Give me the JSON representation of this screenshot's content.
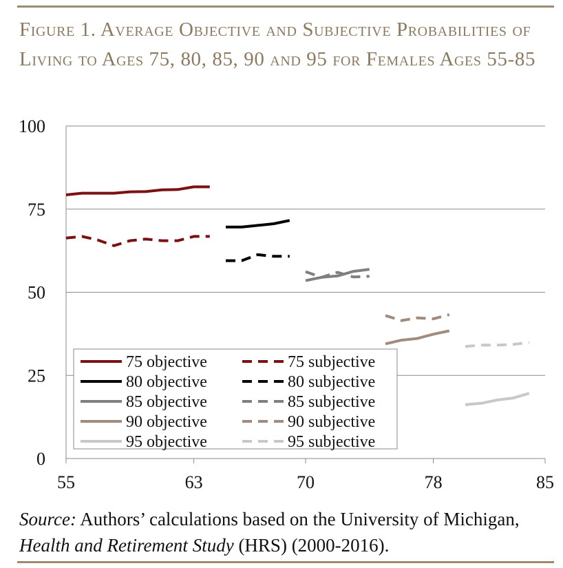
{
  "figure": {
    "title": "Figure 1. Average Objective and Subjective Probabilities of Living to Ages 75, 80, 85, 90 and 95 for Females Ages 55-85"
  },
  "source": {
    "label": "Source:",
    "text_before": " Authors’ calculations based on the University of Michigan, ",
    "study": "Health and Retirement Study",
    "text_after": " (HRS) (2000-2016)."
  },
  "colors": {
    "target_75": "#7b1113",
    "target_80": "#000000",
    "target_85": "#7f7f7f",
    "target_90": "#a08c7e",
    "target_95": "#c8c8c8",
    "rule": "#9b8a6e",
    "title": "#8c7a5f"
  },
  "chart_data": {
    "type": "line",
    "x_ticks": [
      "55",
      "63",
      "70",
      "78",
      "85"
    ],
    "y_ticks": [
      "0",
      "25",
      "50",
      "75",
      "100"
    ],
    "xlim": [
      55,
      85
    ],
    "ylim": [
      0,
      100
    ],
    "grid": "horizontal",
    "legend_position": "bottom-left",
    "series": [
      {
        "name": "75 objective",
        "style": "solid",
        "color": "#7b1113",
        "x": [
          55,
          56,
          57,
          58,
          59,
          60,
          61,
          62,
          63,
          64
        ],
        "y": [
          79.3,
          79.8,
          79.8,
          79.8,
          80.2,
          80.3,
          80.8,
          80.9,
          81.7,
          81.7
        ]
      },
      {
        "name": "75 subjective",
        "style": "dashed",
        "color": "#7b1113",
        "x": [
          55,
          56,
          57,
          58,
          59,
          60,
          61,
          62,
          63,
          64
        ],
        "y": [
          66.3,
          66.8,
          65.7,
          64.0,
          65.5,
          66.0,
          65.5,
          65.5,
          66.8,
          66.8
        ]
      },
      {
        "name": "80 objective",
        "style": "solid",
        "color": "#000000",
        "x": [
          65,
          66,
          67,
          68,
          69
        ],
        "y": [
          69.6,
          69.6,
          70.1,
          70.6,
          71.6
        ]
      },
      {
        "name": "80 subjective",
        "style": "dashed",
        "color": "#000000",
        "x": [
          65,
          66,
          67,
          68,
          69
        ],
        "y": [
          59.5,
          59.5,
          61.3,
          60.8,
          60.8
        ]
      },
      {
        "name": "85 objective",
        "style": "solid",
        "color": "#7f7f7f",
        "x": [
          70,
          71,
          72,
          73,
          74
        ],
        "y": [
          53.5,
          54.5,
          54.9,
          56.3,
          56.9
        ]
      },
      {
        "name": "85 subjective",
        "style": "dashed",
        "color": "#7f7f7f",
        "x": [
          70,
          71,
          72,
          73,
          74
        ],
        "y": [
          56.2,
          54.5,
          56.0,
          54.6,
          54.8
        ]
      },
      {
        "name": "90 objective",
        "style": "solid",
        "color": "#a08c7e",
        "x": [
          75,
          76,
          77,
          78,
          79
        ],
        "y": [
          34.5,
          35.6,
          36.1,
          37.4,
          38.4
        ]
      },
      {
        "name": "90 subjective",
        "style": "dashed",
        "color": "#a08c7e",
        "x": [
          75,
          76,
          77,
          78,
          79
        ],
        "y": [
          43.0,
          41.5,
          42.3,
          42.0,
          43.3
        ]
      },
      {
        "name": "95 objective",
        "style": "solid",
        "color": "#c8c8c8",
        "x": [
          80,
          81,
          82,
          83,
          84
        ],
        "y": [
          16.2,
          16.6,
          17.6,
          18.2,
          19.6
        ]
      },
      {
        "name": "95 subjective",
        "style": "dashed",
        "color": "#c8c8c8",
        "x": [
          80,
          81,
          82,
          83,
          84
        ],
        "y": [
          33.7,
          34.1,
          34.1,
          34.3,
          34.9
        ]
      }
    ]
  }
}
